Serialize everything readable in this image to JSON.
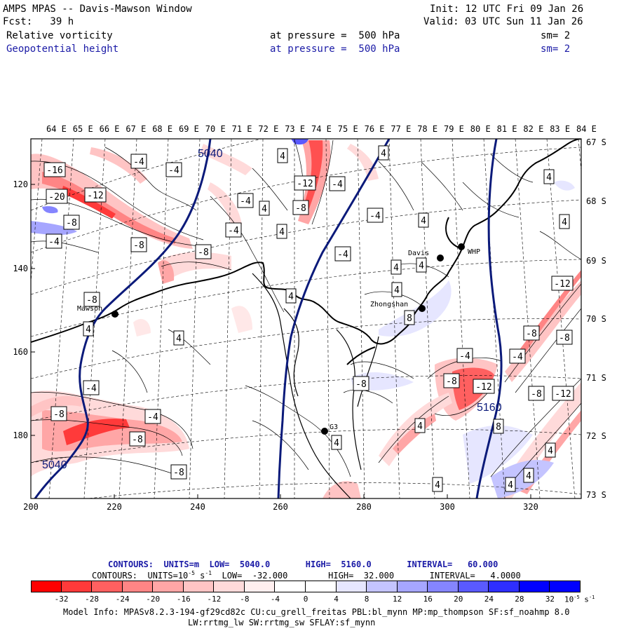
{
  "header": {
    "title": "AMPS MPAS -- Davis-Mawson Window",
    "init": "Init: 12 UTC Fri 09 Jan 26",
    "fcst": "Fcst:   39 h",
    "valid": "Valid: 03 UTC Sun 11 Jan 26",
    "field1_name": "Relative vorticity",
    "field1_level": "at pressure =  500 hPa",
    "field1_sm": "sm= 2",
    "field2_name": "Geopotential height",
    "field2_level": "at pressure =  500 hPa",
    "field2_sm": "sm= 2"
  },
  "top_lon_labels": [
    "64 E",
    "65 E",
    "66 E",
    "67 E",
    "68 E",
    "69 E",
    "70 E",
    "71 E",
    "72 E",
    "73 E",
    "74 E",
    "75 E",
    "76 E",
    "77 E",
    "78 E",
    "79 E",
    "80 E",
    "81 E",
    "82 E",
    "83 E",
    "84 E"
  ],
  "right_lat_labels": [
    "67 S",
    "68 S",
    "69 S",
    "70 S",
    "71 S",
    "72 S",
    "73 S"
  ],
  "left_y_ticks": [
    "120",
    "140",
    "160",
    "180"
  ],
  "bottom_x_ticks": [
    "200",
    "220",
    "240",
    "260",
    "280",
    "300",
    "320"
  ],
  "stations": [
    {
      "name": "Davis"
    },
    {
      "name": "WHP"
    },
    {
      "name": "Mawson"
    },
    {
      "name": "Zhongshan"
    },
    {
      "name": "G3"
    }
  ],
  "height_contours": [
    "5040",
    "5040",
    "5160"
  ],
  "vorticity_labels": [
    "-16",
    "-20",
    "-12",
    "-8",
    "-4",
    "-4",
    "-8",
    "-4",
    "4",
    "-12",
    "-4",
    "-8",
    "4",
    "-4",
    "4",
    "-8",
    "-4",
    "4",
    "-8",
    "4",
    "-4",
    "4",
    "4",
    "4",
    "-4",
    "4",
    "-12",
    "-8",
    "4",
    "-4",
    "-8",
    "-12",
    "-8",
    "-12",
    "-8",
    "8",
    "-4",
    "-8",
    "-4",
    "4",
    "-8",
    "4",
    "-4",
    "-8",
    "4",
    "4",
    "8",
    "4",
    "4",
    "4",
    "-8",
    "4",
    "4"
  ],
  "legend": {
    "height_contours": "CONTOURS:  UNITS=m  LOW=  5040.0       HIGH=  5160.0       INTERVAL=   60.000",
    "vort_contours_prefix": "CONTOURS:  UNITS=10",
    "vort_contours_exp": "-5",
    "vort_contours_unit": " s",
    "vort_contours_unit_exp": "-1",
    "vort_contours_rest": "  LOW=  -32.000        HIGH=  32.000       INTERVAL=   4.0000",
    "colorbar_ticks": [
      "-32",
      "-28",
      "-24",
      "-20",
      "-16",
      "-12",
      "-8",
      "-4",
      "0",
      "4",
      "8",
      "12",
      "16",
      "20",
      "24",
      "28",
      "32"
    ],
    "colorbar_colors": [
      "#ff0000",
      "#ff3a3a",
      "#ff6060",
      "#ff8585",
      "#ffa6a6",
      "#ffc4c4",
      "#ffdada",
      "#ffefef",
      "#ffffff",
      "#ffffff",
      "#e6e6ff",
      "#c4c4ff",
      "#a6a6ff",
      "#8585ff",
      "#5a5aff",
      "#2e2eff",
      "#0000ff"
    ],
    "colorbar_unit": "10",
    "colorbar_unit_exp": "-5",
    "colorbar_unit_s": " s",
    "colorbar_unit_s_exp": "-1"
  },
  "model_info_line1": "Model Info: MPASv8.2.3-194-gf29cd82c CU:cu_grell_freitas PBL:bl_mynn MP:mp_thompson SF:sf_noahmp 8.0",
  "model_info_line2": "LW:rrtmg_lw SW:rrtmg_sw SFLAY:sf_mynn"
}
